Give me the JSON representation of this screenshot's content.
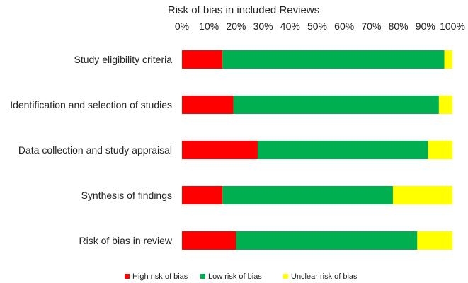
{
  "chart_data": {
    "type": "bar",
    "orientation": "horizontal",
    "stacked": true,
    "title": "Risk of bias in included Reviews",
    "x_ticks": [
      "0%",
      "10%",
      "20%",
      "30%",
      "40%",
      "50%",
      "60%",
      "70%",
      "80%",
      "90%",
      "100%"
    ],
    "xlim": [
      0,
      100
    ],
    "grid": false,
    "legend_position": "bottom",
    "categories": [
      "Study eligibility criteria",
      "Identification and selection of studies",
      "Data collection and study appraisal",
      "Synthesis of findings",
      "Risk of bias in review"
    ],
    "series": [
      {
        "name": "High risk of bias",
        "color": "#ff0000",
        "values": [
          15,
          19,
          28,
          15,
          20
        ]
      },
      {
        "name": "Low risk of bias",
        "color": "#00b050",
        "values": [
          82,
          76,
          63,
          63,
          67
        ]
      },
      {
        "name": "Unclear risk of bias",
        "color": "#ffff00",
        "values": [
          3,
          5,
          9,
          22,
          13
        ]
      }
    ]
  }
}
